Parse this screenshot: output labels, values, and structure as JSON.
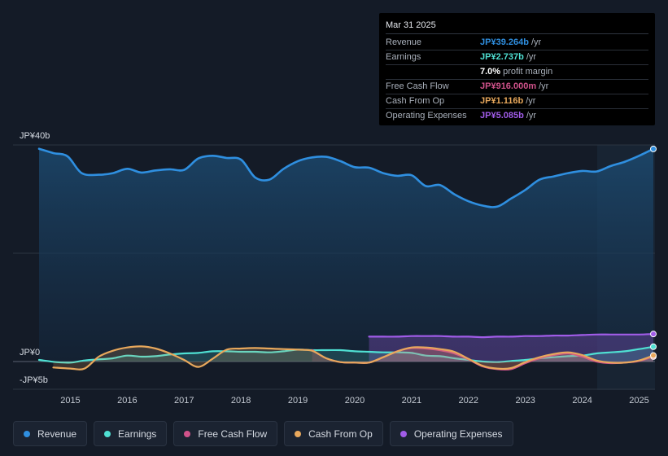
{
  "tooltip": {
    "date": "Mar 31 2025",
    "rows": [
      {
        "label": "Revenue",
        "value": "JP¥39.264b",
        "unit": "/yr",
        "color": "#2f8fe0"
      },
      {
        "label": "Earnings",
        "value": "JP¥2.737b",
        "unit": "/yr",
        "color": "#4fe0d3"
      },
      {
        "label": "",
        "value": "7.0%",
        "unit": "profit margin",
        "color": "#ffffff"
      },
      {
        "label": "Free Cash Flow",
        "value": "JP¥916.000m",
        "unit": "/yr",
        "color": "#d0528a"
      },
      {
        "label": "Cash From Op",
        "value": "JP¥1.116b",
        "unit": "/yr",
        "color": "#e8a85c"
      },
      {
        "label": "Operating Expenses",
        "value": "JP¥5.085b",
        "unit": "/yr",
        "color": "#a05ce8"
      }
    ]
  },
  "legend": [
    {
      "label": "Revenue",
      "color": "#2f8fe0"
    },
    {
      "label": "Earnings",
      "color": "#4fe0d3"
    },
    {
      "label": "Free Cash Flow",
      "color": "#d0528a"
    },
    {
      "label": "Cash From Op",
      "color": "#e8a85c"
    },
    {
      "label": "Operating Expenses",
      "color": "#a05ce8"
    }
  ],
  "chart_data": {
    "type": "line",
    "y_unit": "JP¥b",
    "ylim": [
      -5,
      40
    ],
    "ytick_labels": [
      {
        "value": 40,
        "label": "JP¥40b"
      },
      {
        "value": 0,
        "label": "JP¥0"
      },
      {
        "value": -5,
        "label": "-JP¥5b"
      }
    ],
    "xlim": [
      2014.45,
      2025.25
    ],
    "xtick_labels": [
      "2015",
      "2016",
      "2017",
      "2018",
      "2019",
      "2020",
      "2021",
      "2022",
      "2023",
      "2024",
      "2025"
    ],
    "forecast_start": 2024.25,
    "series": [
      {
        "name": "Revenue",
        "color": "#2f8fe0",
        "fill": true,
        "points": [
          [
            2014.45,
            39.3
          ],
          [
            2014.7,
            38.5
          ],
          [
            2014.95,
            37.9
          ],
          [
            2015.2,
            34.8
          ],
          [
            2015.5,
            34.5
          ],
          [
            2015.75,
            34.8
          ],
          [
            2016.0,
            35.6
          ],
          [
            2016.25,
            34.9
          ],
          [
            2016.5,
            35.3
          ],
          [
            2016.75,
            35.5
          ],
          [
            2017.0,
            35.4
          ],
          [
            2017.25,
            37.5
          ],
          [
            2017.5,
            38.0
          ],
          [
            2017.75,
            37.6
          ],
          [
            2018.0,
            37.3
          ],
          [
            2018.25,
            34.0
          ],
          [
            2018.5,
            33.6
          ],
          [
            2018.75,
            35.6
          ],
          [
            2019.0,
            37.0
          ],
          [
            2019.25,
            37.7
          ],
          [
            2019.5,
            37.8
          ],
          [
            2019.75,
            37.0
          ],
          [
            2020.0,
            35.9
          ],
          [
            2020.25,
            35.8
          ],
          [
            2020.5,
            34.8
          ],
          [
            2020.75,
            34.3
          ],
          [
            2021.0,
            34.4
          ],
          [
            2021.25,
            32.4
          ],
          [
            2021.5,
            32.6
          ],
          [
            2021.75,
            30.9
          ],
          [
            2022.0,
            29.6
          ],
          [
            2022.25,
            28.8
          ],
          [
            2022.5,
            28.6
          ],
          [
            2022.75,
            30.1
          ],
          [
            2023.0,
            31.7
          ],
          [
            2023.25,
            33.6
          ],
          [
            2023.5,
            34.2
          ],
          [
            2023.75,
            34.8
          ],
          [
            2024.0,
            35.2
          ],
          [
            2024.25,
            35.1
          ],
          [
            2024.5,
            36.1
          ],
          [
            2024.75,
            36.9
          ],
          [
            2025.0,
            38.0
          ],
          [
            2025.25,
            39.26
          ]
        ]
      },
      {
        "name": "Earnings",
        "color": "#4fe0d3",
        "fill": true,
        "points": [
          [
            2014.45,
            0.3
          ],
          [
            2014.75,
            -0.1
          ],
          [
            2015.0,
            -0.2
          ],
          [
            2015.25,
            0.2
          ],
          [
            2015.5,
            0.4
          ],
          [
            2015.75,
            0.6
          ],
          [
            2016.0,
            1.1
          ],
          [
            2016.25,
            0.9
          ],
          [
            2016.5,
            1.0
          ],
          [
            2016.75,
            1.3
          ],
          [
            2017.0,
            1.5
          ],
          [
            2017.25,
            1.6
          ],
          [
            2017.5,
            1.9
          ],
          [
            2017.75,
            1.9
          ],
          [
            2018.0,
            1.8
          ],
          [
            2018.25,
            1.8
          ],
          [
            2018.5,
            1.7
          ],
          [
            2018.75,
            1.9
          ],
          [
            2019.0,
            2.2
          ],
          [
            2019.25,
            2.1
          ],
          [
            2019.5,
            2.1
          ],
          [
            2019.75,
            2.1
          ],
          [
            2020.0,
            1.9
          ],
          [
            2020.25,
            1.8
          ],
          [
            2020.5,
            1.7
          ],
          [
            2020.75,
            1.7
          ],
          [
            2021.0,
            1.6
          ],
          [
            2021.25,
            1.1
          ],
          [
            2021.5,
            1.0
          ],
          [
            2021.75,
            0.6
          ],
          [
            2022.0,
            0.3
          ],
          [
            2022.25,
            0.0
          ],
          [
            2022.5,
            -0.1
          ],
          [
            2022.75,
            0.1
          ],
          [
            2023.0,
            0.3
          ],
          [
            2023.25,
            0.6
          ],
          [
            2023.5,
            0.8
          ],
          [
            2023.75,
            1.0
          ],
          [
            2024.0,
            1.1
          ],
          [
            2024.25,
            1.5
          ],
          [
            2024.5,
            1.7
          ],
          [
            2024.75,
            1.9
          ],
          [
            2025.0,
            2.3
          ],
          [
            2025.25,
            2.74
          ]
        ]
      },
      {
        "name": "Free Cash Flow",
        "color": "#d0528a",
        "fill": true,
        "points": [
          [
            2019.25,
            2.1
          ],
          [
            2019.5,
            0.6
          ],
          [
            2019.75,
            -0.1
          ],
          [
            2020.0,
            -0.2
          ],
          [
            2020.25,
            -0.2
          ],
          [
            2020.5,
            0.8
          ],
          [
            2020.75,
            1.9
          ],
          [
            2021.0,
            2.5
          ],
          [
            2021.25,
            2.4
          ],
          [
            2021.5,
            2.1
          ],
          [
            2021.75,
            1.5
          ],
          [
            2022.0,
            0.4
          ],
          [
            2022.25,
            -0.9
          ],
          [
            2022.5,
            -1.4
          ],
          [
            2022.75,
            -1.4
          ],
          [
            2023.0,
            -0.3
          ],
          [
            2023.25,
            0.6
          ],
          [
            2023.5,
            1.2
          ],
          [
            2023.75,
            1.5
          ],
          [
            2024.0,
            0.9
          ],
          [
            2024.25,
            0.0
          ],
          [
            2024.5,
            -0.3
          ],
          [
            2024.75,
            -0.2
          ],
          [
            2025.0,
            0.1
          ],
          [
            2025.25,
            0.92
          ]
        ]
      },
      {
        "name": "Cash From Op",
        "color": "#e8a85c",
        "fill": true,
        "points": [
          [
            2014.7,
            -1.1
          ],
          [
            2015.0,
            -1.3
          ],
          [
            2015.25,
            -1.3
          ],
          [
            2015.5,
            0.9
          ],
          [
            2015.75,
            2.0
          ],
          [
            2016.0,
            2.6
          ],
          [
            2016.25,
            2.8
          ],
          [
            2016.5,
            2.4
          ],
          [
            2016.75,
            1.5
          ],
          [
            2017.0,
            0.3
          ],
          [
            2017.25,
            -1.0
          ],
          [
            2017.5,
            0.5
          ],
          [
            2017.75,
            2.2
          ],
          [
            2018.0,
            2.4
          ],
          [
            2018.25,
            2.5
          ],
          [
            2018.5,
            2.4
          ],
          [
            2018.75,
            2.3
          ],
          [
            2019.0,
            2.2
          ],
          [
            2019.25,
            2.0
          ],
          [
            2019.5,
            0.6
          ],
          [
            2019.75,
            -0.1
          ],
          [
            2020.0,
            -0.2
          ],
          [
            2020.25,
            -0.2
          ],
          [
            2020.5,
            0.8
          ],
          [
            2020.75,
            1.9
          ],
          [
            2021.0,
            2.6
          ],
          [
            2021.25,
            2.6
          ],
          [
            2021.5,
            2.3
          ],
          [
            2021.75,
            1.8
          ],
          [
            2022.0,
            0.5
          ],
          [
            2022.25,
            -0.8
          ],
          [
            2022.5,
            -1.3
          ],
          [
            2022.75,
            -1.2
          ],
          [
            2023.0,
            -0.1
          ],
          [
            2023.25,
            0.8
          ],
          [
            2023.5,
            1.4
          ],
          [
            2023.75,
            1.7
          ],
          [
            2024.0,
            1.2
          ],
          [
            2024.25,
            0.2
          ],
          [
            2024.5,
            -0.2
          ],
          [
            2024.75,
            -0.2
          ],
          [
            2025.0,
            0.2
          ],
          [
            2025.25,
            1.12
          ]
        ]
      },
      {
        "name": "Operating Expenses",
        "color": "#a05ce8",
        "fill": true,
        "points": [
          [
            2020.25,
            4.6
          ],
          [
            2020.5,
            4.6
          ],
          [
            2020.75,
            4.6
          ],
          [
            2021.0,
            4.7
          ],
          [
            2021.25,
            4.7
          ],
          [
            2021.5,
            4.7
          ],
          [
            2021.75,
            4.6
          ],
          [
            2022.0,
            4.6
          ],
          [
            2022.25,
            4.5
          ],
          [
            2022.5,
            4.6
          ],
          [
            2022.75,
            4.6
          ],
          [
            2023.0,
            4.7
          ],
          [
            2023.25,
            4.7
          ],
          [
            2023.5,
            4.8
          ],
          [
            2023.75,
            4.8
          ],
          [
            2024.0,
            4.9
          ],
          [
            2024.25,
            5.0
          ],
          [
            2024.5,
            5.0
          ],
          [
            2024.75,
            5.0
          ],
          [
            2025.0,
            5.0
          ],
          [
            2025.25,
            5.09
          ]
        ]
      }
    ]
  }
}
